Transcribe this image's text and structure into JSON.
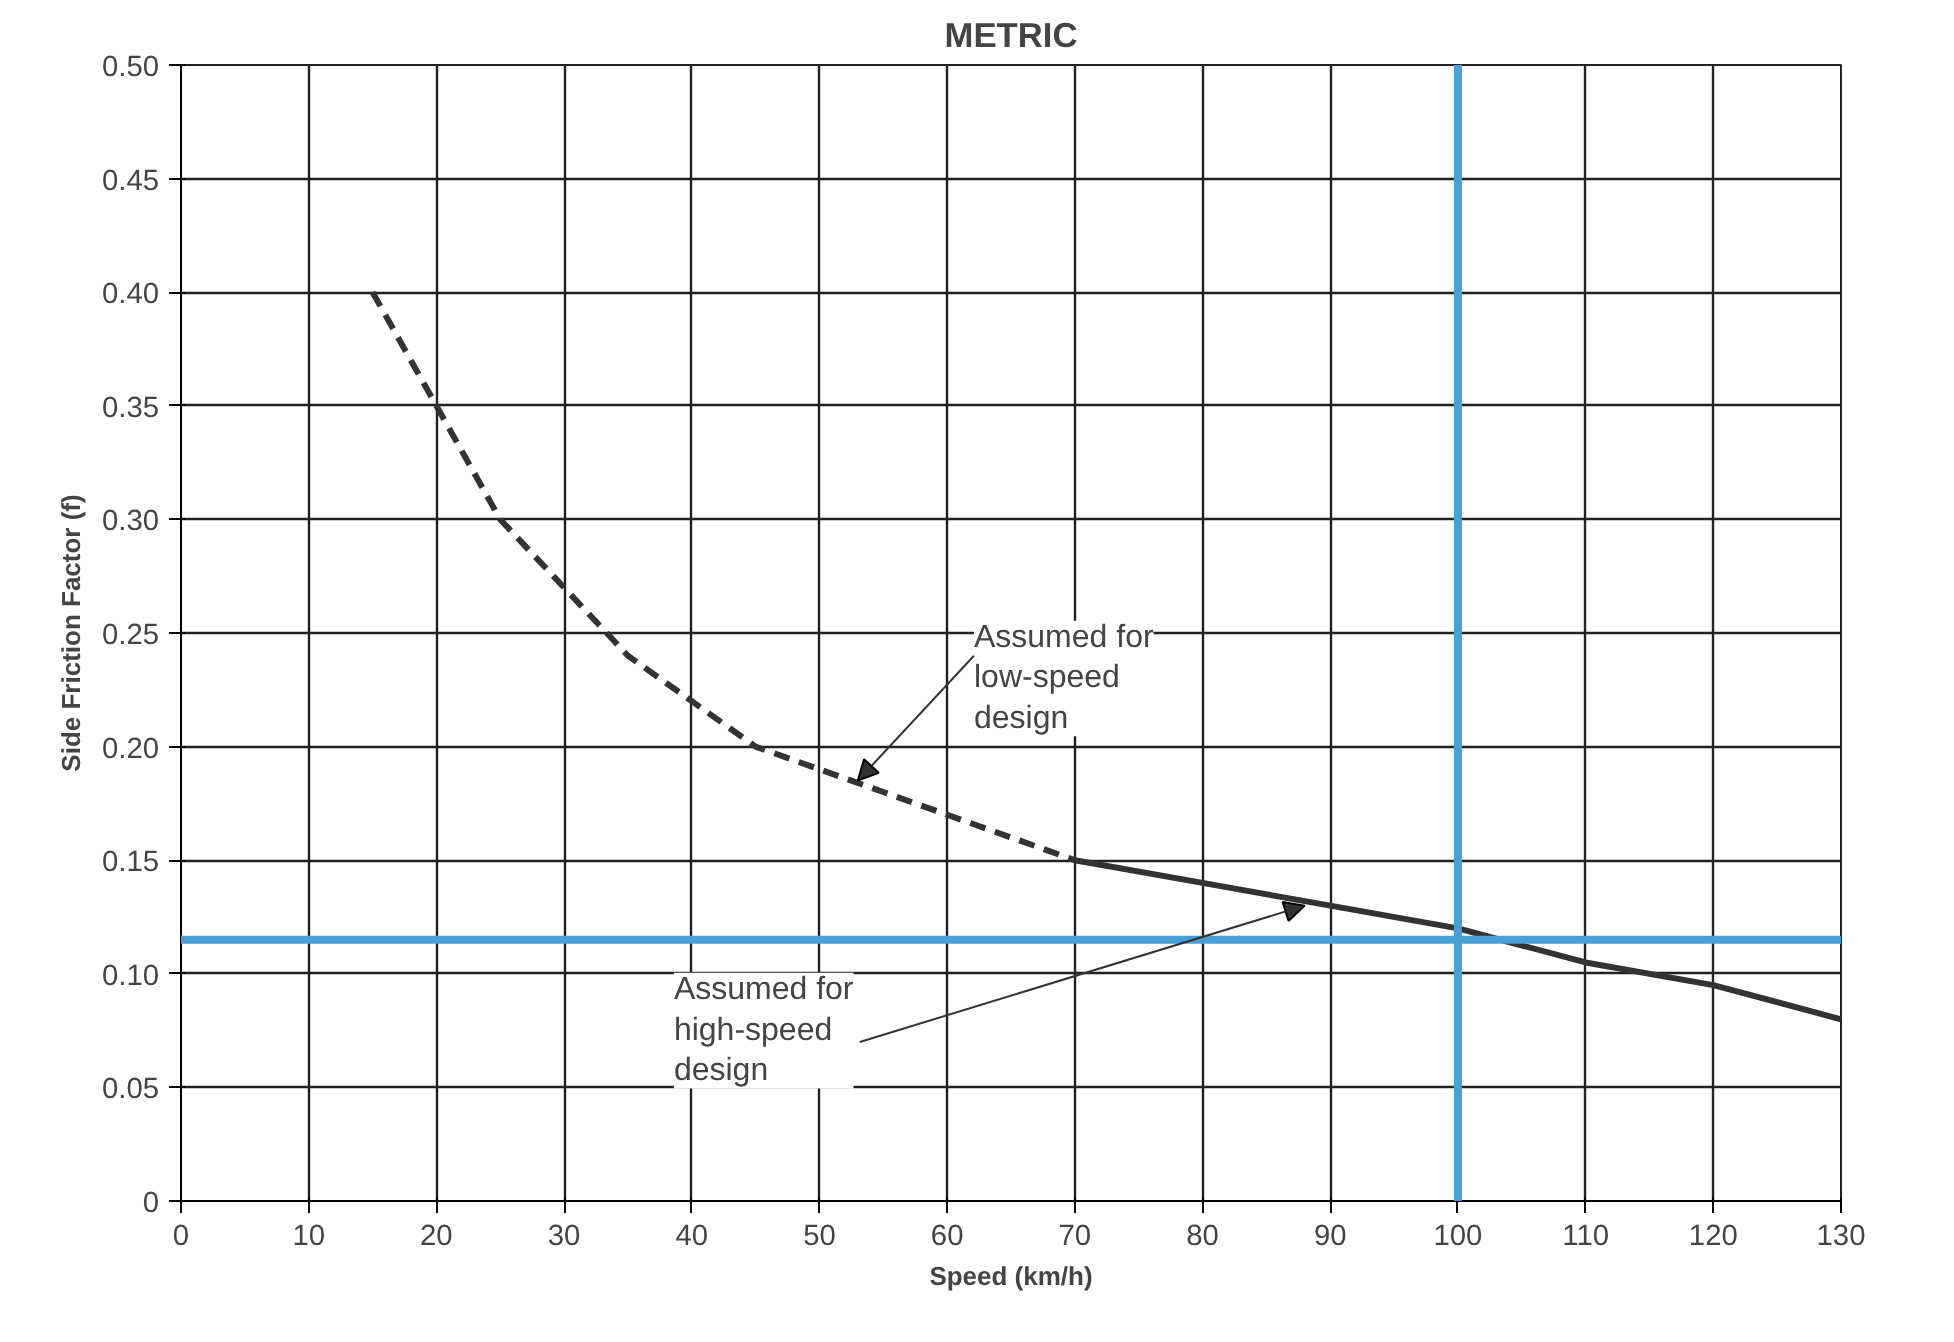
{
  "chart_data": {
    "type": "line",
    "title": "METRIC",
    "xlabel": "Speed (km/h)",
    "ylabel": "Side Friction Factor (f)",
    "series": [
      {
        "color": "#333333",
        "line_style": "dashed",
        "x": [
          15,
          20,
          25,
          30,
          35,
          40,
          45,
          50,
          55,
          60,
          65,
          70
        ],
        "values": [
          0.4,
          0.35,
          0.3,
          0.27,
          0.24,
          0.22,
          0.2,
          0.19,
          0.18,
          0.17,
          0.16,
          0.15
        ]
      },
      {
        "color": "#333333",
        "line_style": "solid",
        "x": [
          70,
          80,
          90,
          100,
          110,
          120,
          130
        ],
        "values": [
          0.15,
          0.14,
          0.13,
          0.12,
          0.105,
          0.095,
          0.08
        ]
      }
    ],
    "xlim": [
      0,
      130
    ],
    "xticks": [
      0,
      10,
      20,
      30,
      40,
      50,
      60,
      70,
      80,
      90,
      100,
      110,
      120,
      130
    ],
    "ylim": [
      0,
      0.5
    ],
    "yticks": [
      {
        "value": 0,
        "label": "0"
      },
      {
        "value": 0.05,
        "label": "0.05"
      },
      {
        "value": 0.1,
        "label": "0.10"
      },
      {
        "value": 0.15,
        "label": "0.15"
      },
      {
        "value": 0.2,
        "label": "0.20"
      },
      {
        "value": 0.25,
        "label": "0.25"
      },
      {
        "value": 0.3,
        "label": "0.30"
      },
      {
        "value": 0.35,
        "label": "0.35"
      },
      {
        "value": 0.4,
        "label": "0.40"
      },
      {
        "value": 0.45,
        "label": "0.45"
      },
      {
        "value": 0.5,
        "label": "0.50"
      }
    ],
    "grid": true,
    "marker": "none",
    "ref_lines": [
      {
        "axis": "x",
        "value": 100,
        "color": "#4a9fd4"
      },
      {
        "axis": "y",
        "value": 0.115,
        "color": "#4a9fd4"
      }
    ],
    "annotations": [
      {
        "text": "Assumed for\nlow-speed\ndesign",
        "x": 53,
        "y": 0.185
      },
      {
        "text": "Assumed for\nhigh-speed\ndesign",
        "x": 88,
        "y": 0.13
      }
    ]
  }
}
